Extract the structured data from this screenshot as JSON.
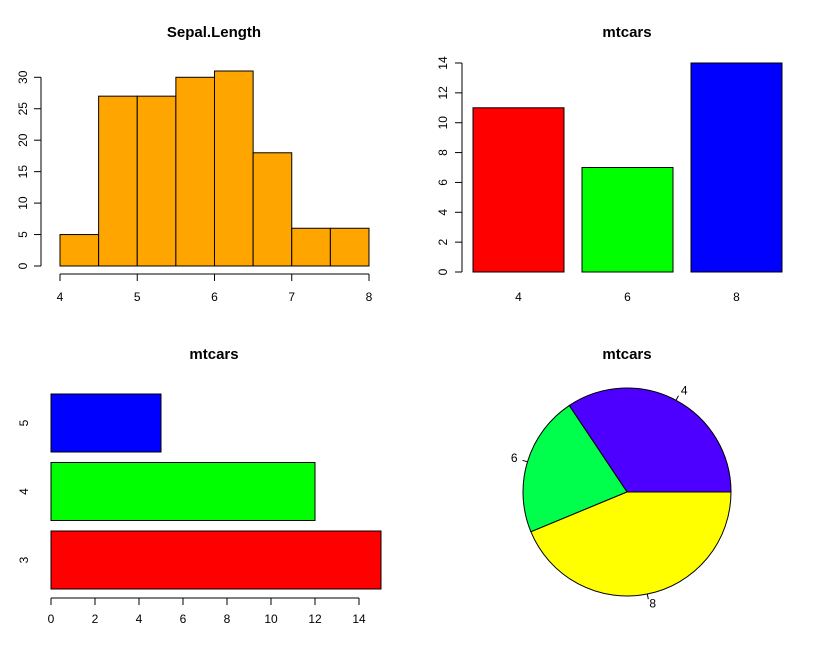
{
  "chart_data": [
    {
      "type": "histogram",
      "title": "Sepal.Length",
      "bins": [
        4,
        4.5,
        5,
        5.5,
        6,
        6.5,
        7,
        7.5,
        8
      ],
      "values": [
        5,
        27,
        27,
        30,
        31,
        18,
        6,
        6
      ],
      "color": "#FFA500",
      "xlim": [
        4,
        8
      ],
      "ylim": [
        0,
        31
      ],
      "xticks": [
        4,
        5,
        6,
        7,
        8
      ],
      "yticks": [
        0,
        5,
        10,
        15,
        20,
        25,
        30
      ]
    },
    {
      "type": "bar",
      "title": "mtcars",
      "categories": [
        "4",
        "6",
        "8"
      ],
      "values": [
        11,
        7,
        14
      ],
      "colors": [
        "#FF0000",
        "#00FF00",
        "#0000FF"
      ],
      "ylim": [
        0,
        14
      ],
      "yticks": [
        0,
        2,
        4,
        6,
        8,
        10,
        12,
        14
      ]
    },
    {
      "type": "barh",
      "title": "mtcars",
      "categories": [
        "3",
        "4",
        "5"
      ],
      "values": [
        15,
        12,
        5
      ],
      "colors": [
        "#FF0000",
        "#00FF00",
        "#0000FF"
      ],
      "xlim": [
        0,
        15
      ],
      "xticks": [
        0,
        2,
        4,
        6,
        8,
        10,
        12,
        14
      ]
    },
    {
      "type": "pie",
      "title": "mtcars",
      "categories": [
        "4",
        "6",
        "8"
      ],
      "values": [
        11,
        7,
        14
      ],
      "colors": [
        "#4D00FF",
        "#00FF4D",
        "#FFFF00"
      ]
    }
  ]
}
